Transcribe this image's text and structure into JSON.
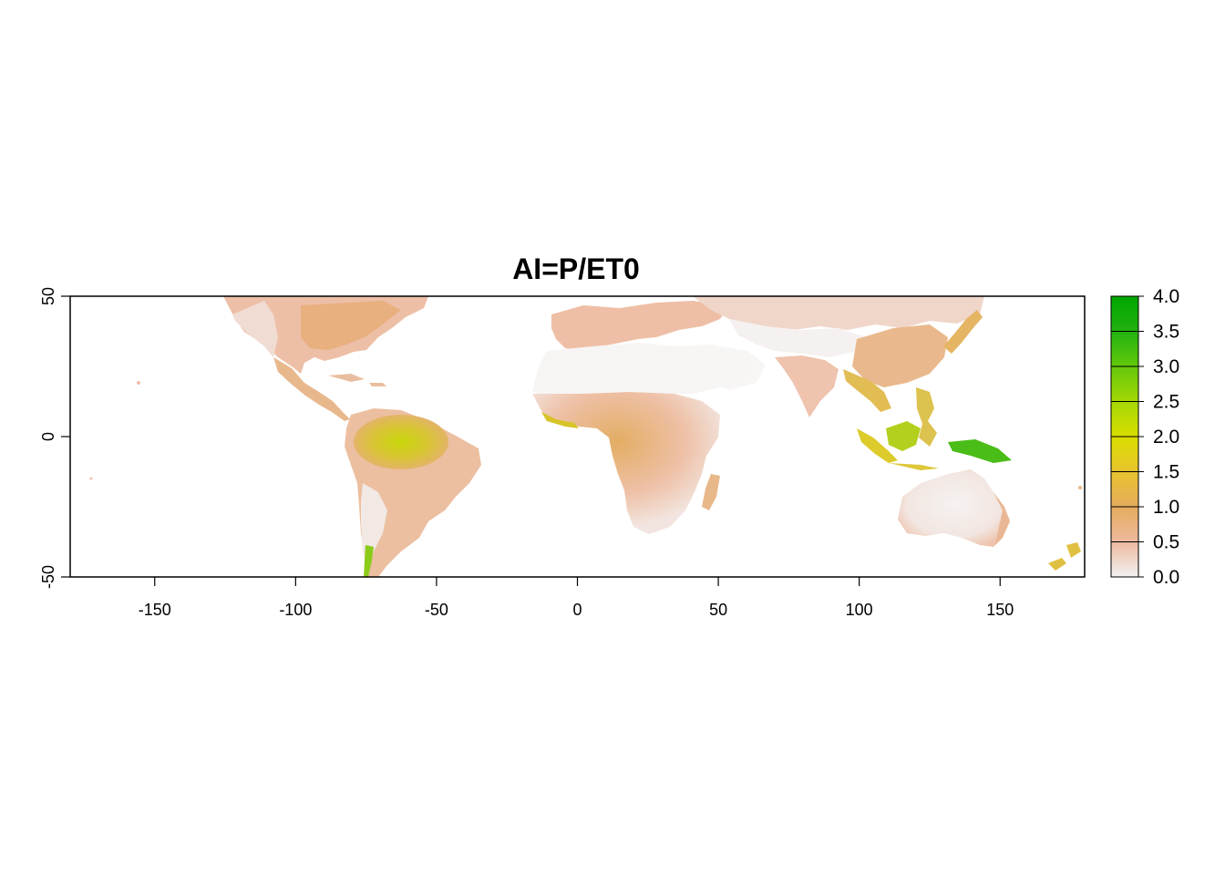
{
  "title": "AI=P/ET0",
  "chart_data": {
    "type": "heatmap",
    "title": "AI=P/ET0",
    "xlabel": "",
    "ylabel": "",
    "xlim": [
      -180,
      180
    ],
    "ylim": [
      -50,
      50
    ],
    "x_ticks": [
      "-150",
      "-100",
      "-50",
      "0",
      "50",
      "100",
      "150"
    ],
    "y_ticks": [
      "50",
      "0",
      "-50"
    ],
    "legend": {
      "placement": "right",
      "min": 0.0,
      "max": 4.0,
      "ticks": [
        "0.0",
        "0.5",
        "1.0",
        "1.5",
        "2.0",
        "2.5",
        "3.0",
        "3.5",
        "4.0"
      ],
      "colors": [
        "#f2f2f2",
        "#eeb99f",
        "#e6ac5c",
        "#e8c32e",
        "#d9de00",
        "#a4d804",
        "#63c80c",
        "#22b20f",
        "#00a600"
      ]
    },
    "regions": [
      {
        "name": "North America",
        "value": 0.8
      },
      {
        "name": "Central America",
        "value": 1.2
      },
      {
        "name": "Amazon",
        "value": 1.8
      },
      {
        "name": "South America south",
        "value": 0.6
      },
      {
        "name": "Southern Chile",
        "value": 2.5
      },
      {
        "name": "Europe",
        "value": 0.8
      },
      {
        "name": "Sahara",
        "value": 0.05
      },
      {
        "name": "Central Africa",
        "value": 1.2
      },
      {
        "name": "Southern Africa",
        "value": 0.5
      },
      {
        "name": "Madagascar",
        "value": 1.0
      },
      {
        "name": "Arabia",
        "value": 0.05
      },
      {
        "name": "Central Asia",
        "value": 0.2
      },
      {
        "name": "Siberia",
        "value": 0.6
      },
      {
        "name": "India",
        "value": 0.7
      },
      {
        "name": "SE Asia",
        "value": 1.4
      },
      {
        "name": "China",
        "value": 0.9
      },
      {
        "name": "Japan",
        "value": 1.5
      },
      {
        "name": "Indonesia",
        "value": 1.9
      },
      {
        "name": "Papua New Guinea",
        "value": 2.8
      },
      {
        "name": "Australia",
        "value": 0.2
      },
      {
        "name": "New Zealand",
        "value": 1.6
      }
    ]
  }
}
